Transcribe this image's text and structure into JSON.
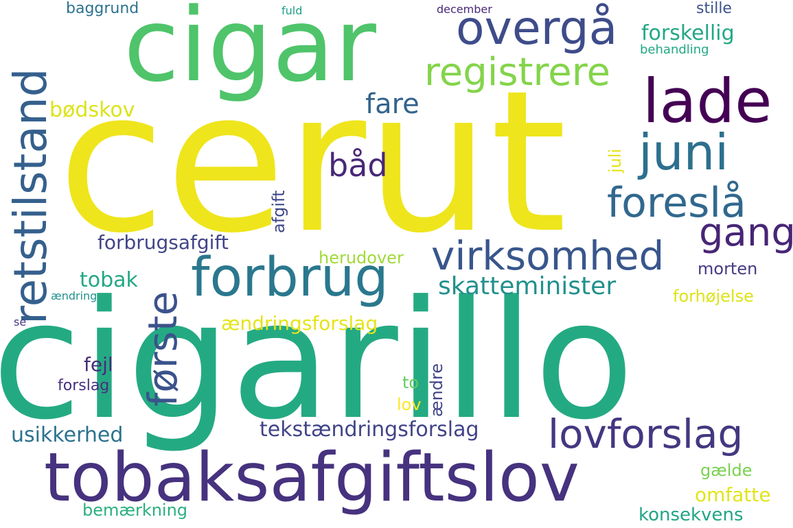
{
  "words": [
    {
      "id": "cerut",
      "text": "cerut",
      "color": "#efe51c"
    },
    {
      "id": "cigarillo",
      "text": "cigarillo",
      "color": "#24aa83"
    },
    {
      "id": "cigar",
      "text": "cigar",
      "color": "#4fc46a"
    },
    {
      "id": "tobaksafgiftslov",
      "text": "tobaksafgiftslov",
      "color": "#46327e"
    },
    {
      "id": "lade",
      "text": "lade",
      "color": "#440154"
    },
    {
      "id": "overga",
      "text": "overgå",
      "color": "#3e4c8a"
    },
    {
      "id": "registrere",
      "text": "registrere",
      "color": "#84d44b"
    },
    {
      "id": "juni",
      "text": "juni",
      "color": "#2d708e"
    },
    {
      "id": "foresla",
      "text": "foreslå",
      "color": "#31688e"
    },
    {
      "id": "gang",
      "text": "gang",
      "color": "#482576"
    },
    {
      "id": "virksomhed",
      "text": "virksomhed",
      "color": "#39568c"
    },
    {
      "id": "forbrug",
      "text": "forbrug",
      "color": "#2a788e"
    },
    {
      "id": "retstilstand",
      "text": "retstilstand",
      "color": "#35608d"
    },
    {
      "id": "forste",
      "text": "første",
      "color": "#3b528b"
    },
    {
      "id": "lovforslag",
      "text": "lovforslag",
      "color": "#453781"
    },
    {
      "id": "tekstaendringsforslag",
      "text": "tekstændringsforslag",
      "color": "#414487"
    },
    {
      "id": "skatteminister",
      "text": "skatteminister",
      "color": "#21918c"
    },
    {
      "id": "baad",
      "text": "båd",
      "color": "#482878"
    },
    {
      "id": "fare",
      "text": "fare",
      "color": "#33638d"
    },
    {
      "id": "forskellig",
      "text": "forskellig",
      "color": "#22a884"
    },
    {
      "id": "bodskov",
      "text": "bødskov",
      "color": "#dde318"
    },
    {
      "id": "forbrugsafgift",
      "text": "forbrugsafgift",
      "color": "#414487"
    },
    {
      "id": "tobak",
      "text": "tobak",
      "color": "#22a884"
    },
    {
      "id": "herudover",
      "text": "herudover",
      "color": "#a0da39"
    },
    {
      "id": "morten",
      "text": "morten",
      "color": "#443a83"
    },
    {
      "id": "forhojelse",
      "text": "forhøjelse",
      "color": "#dde318"
    },
    {
      "id": "aendringsforslag",
      "text": "ændringsforslag",
      "color": "#e5e419"
    },
    {
      "id": "usikkerhed",
      "text": "usikkerhed",
      "color": "#2c728e"
    },
    {
      "id": "omfatte",
      "text": "omfatte",
      "color": "#e2e418"
    },
    {
      "id": "gaelde",
      "text": "gælde",
      "color": "#7ad151"
    },
    {
      "id": "konsekvens",
      "text": "konsekvens",
      "color": "#20a486"
    },
    {
      "id": "bemaerkning",
      "text": "bemærkning",
      "color": "#2ab07f"
    },
    {
      "id": "juli",
      "text": "juli",
      "color": "#e5e419"
    },
    {
      "id": "afgift",
      "text": "afgift",
      "color": "#3f4788"
    },
    {
      "id": "fejl",
      "text": "fejl",
      "color": "#472d7b"
    },
    {
      "id": "forslag",
      "text": "forslag",
      "color": "#46307e"
    },
    {
      "id": "to",
      "text": "to",
      "color": "#63cb5f"
    },
    {
      "id": "lov",
      "text": "lov",
      "color": "#fde725"
    },
    {
      "id": "aendre",
      "text": "ændre",
      "color": "#414487"
    },
    {
      "id": "baggrund",
      "text": "baggrund",
      "color": "#2c728e"
    },
    {
      "id": "fuld",
      "text": "fuld",
      "color": "#1f9e89"
    },
    {
      "id": "december",
      "text": "december",
      "color": "#482878"
    },
    {
      "id": "stille",
      "text": "stille",
      "color": "#3b528b"
    },
    {
      "id": "behandling",
      "text": "behandling",
      "color": "#22a884"
    },
    {
      "id": "aendring",
      "text": "ændring",
      "color": "#21918c"
    },
    {
      "id": "se",
      "text": "se",
      "color": "#453781"
    }
  ]
}
